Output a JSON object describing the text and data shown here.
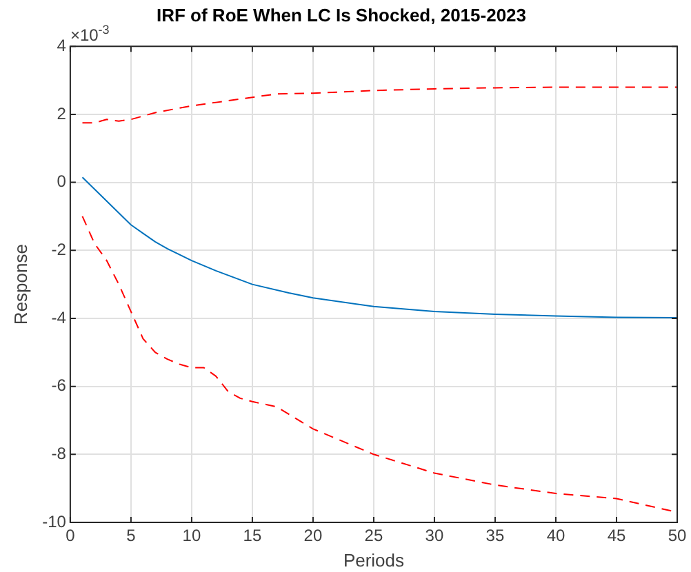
{
  "chart_data": {
    "type": "line",
    "title": "IRF of RoE When LC Is Shocked, 2015-2023",
    "xlabel": "Periods",
    "ylabel": "Response",
    "annotations": [
      "×10$^{-3}$"
    ],
    "series": [
      {
        "color": "#0072bd",
        "line_style": "solid",
        "x": [
          1,
          2,
          3,
          4,
          5,
          6,
          7,
          8,
          10,
          12,
          15,
          18,
          20,
          25,
          30,
          35,
          40,
          45,
          50
        ],
        "values": [
          0.15,
          -0.2,
          -0.55,
          -0.9,
          -1.25,
          -1.5,
          -1.75,
          -1.95,
          -2.3,
          -2.6,
          -3.0,
          -3.25,
          -3.4,
          -3.65,
          -3.8,
          -3.88,
          -3.93,
          -3.97,
          -3.98
        ]
      },
      {
        "color": "#ff0000",
        "line_style": "dashed",
        "x": [
          1,
          2,
          3,
          4,
          5,
          7,
          10,
          12,
          15,
          17,
          20,
          25,
          30,
          35,
          40,
          45,
          50
        ],
        "values": [
          1.75,
          1.75,
          1.85,
          1.8,
          1.85,
          2.05,
          2.25,
          2.35,
          2.5,
          2.6,
          2.62,
          2.7,
          2.75,
          2.78,
          2.8,
          2.8,
          2.8
        ]
      },
      {
        "color": "#ff0000",
        "line_style": "dashed",
        "x": [
          1,
          2,
          3,
          4,
          5,
          6,
          7,
          8,
          9,
          10,
          11,
          12,
          13,
          14,
          15,
          17,
          20,
          25,
          30,
          35,
          40,
          45,
          50
        ],
        "values": [
          -1.0,
          -1.8,
          -2.3,
          -3.0,
          -3.8,
          -4.6,
          -5.0,
          -5.2,
          -5.35,
          -5.45,
          -5.45,
          -5.7,
          -6.15,
          -6.35,
          -6.45,
          -6.6,
          -7.25,
          -8.0,
          -8.55,
          -8.9,
          -9.15,
          -9.3,
          -9.7
        ]
      }
    ],
    "xlim": [
      0,
      50
    ],
    "xticks": [
      0,
      5,
      10,
      15,
      20,
      25,
      30,
      35,
      40,
      45,
      50
    ],
    "ylim": [
      -10,
      4
    ],
    "yticks": [
      -10,
      -8,
      -6,
      -4,
      -2,
      0,
      2,
      4
    ],
    "grid": true,
    "marker": "none",
    "legend": false
  }
}
